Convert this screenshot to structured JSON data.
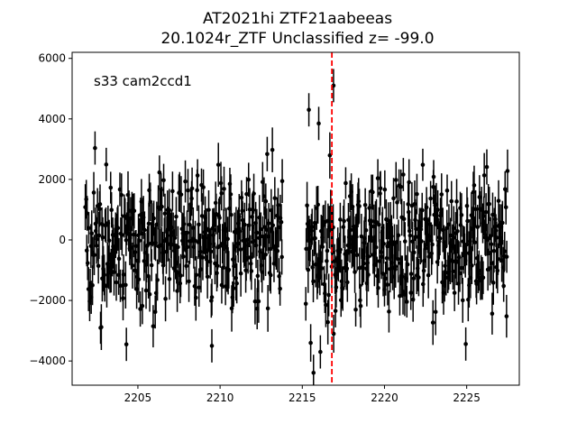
{
  "chart_data": {
    "type": "scatter",
    "title_line1": "AT2021hi  ZTF21aabeeas",
    "title_line2": "20.1024r_ZTF Unclassified z= -99.0",
    "xlabel": "",
    "ylabel": "",
    "xlim": [
      2201.0,
      2228.2
    ],
    "ylim": [
      -4800,
      6200
    ],
    "x_ticks": [
      2205,
      2210,
      2215,
      2220,
      2225
    ],
    "y_ticks": [
      -4000,
      -2000,
      0,
      2000,
      4000,
      6000
    ],
    "x_tick_labels": [
      "2205",
      "2210",
      "2215",
      "2220",
      "2225"
    ],
    "y_tick_labels": [
      "−4000",
      "−2000",
      "0",
      "2000",
      "4000",
      "6000"
    ],
    "annotation": "s33 cam2ccd1",
    "vline": {
      "x": 2216.8,
      "color": "#ff0000",
      "style": "dashed"
    },
    "point_color": "#000000",
    "segments": [
      {
        "x_start": 2201.8,
        "x_end": 2213.8,
        "n_points": 340,
        "flux_sigma": 1100,
        "err_mean": 650
      },
      {
        "x_start": 2215.2,
        "x_end": 2227.5,
        "n_points": 360,
        "flux_sigma": 1150,
        "err_mean": 650
      }
    ],
    "notable_points": [
      {
        "x": 2215.4,
        "y": 4300
      },
      {
        "x": 2216.0,
        "y": 3850
      },
      {
        "x": 2216.9,
        "y": 5100
      },
      {
        "x": 2216.1,
        "y": -3700
      },
      {
        "x": 2209.5,
        "y": -3500
      },
      {
        "x": 2204.3,
        "y": -3450
      }
    ]
  }
}
